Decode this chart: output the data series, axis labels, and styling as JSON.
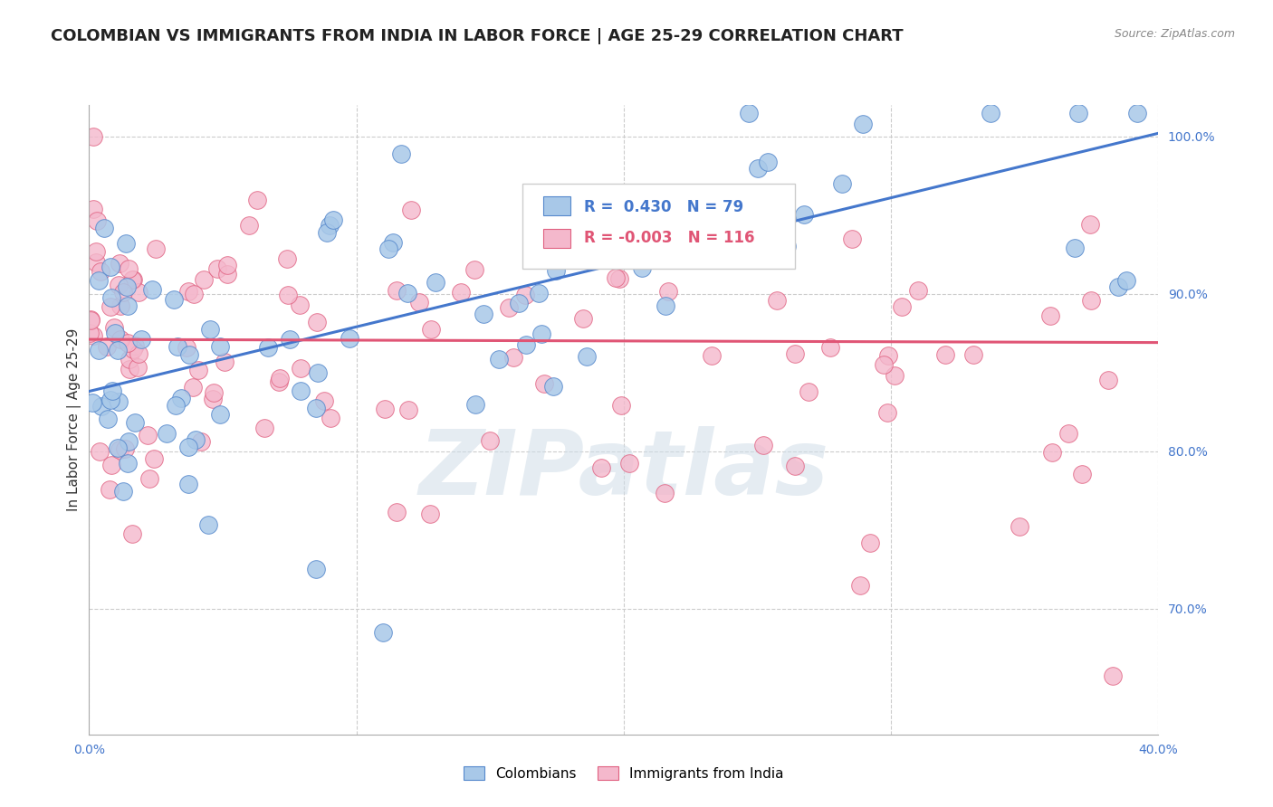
{
  "title": "COLOMBIAN VS IMMIGRANTS FROM INDIA IN LABOR FORCE | AGE 25-29 CORRELATION CHART",
  "source": "Source: ZipAtlas.com",
  "ylabel": "In Labor Force | Age 25-29",
  "xlim": [
    0.0,
    0.4
  ],
  "ylim": [
    0.62,
    1.02
  ],
  "xtick_pos": [
    0.0,
    0.1,
    0.2,
    0.3,
    0.4
  ],
  "xtick_labels": [
    "0.0%",
    "",
    "",
    "",
    "40.0%"
  ],
  "ytick_pos": [
    0.7,
    0.8,
    0.9,
    1.0
  ],
  "ytick_labels": [
    "70.0%",
    "80.0%",
    "90.0%",
    "100.0%"
  ],
  "legend_R_blue": "0.430",
  "legend_N_blue": "79",
  "legend_R_pink": "-0.003",
  "legend_N_pink": "116",
  "color_blue": "#a8c8e8",
  "color_pink": "#f4b8cc",
  "edge_blue": "#5588cc",
  "edge_pink": "#e06080",
  "line_blue_color": "#4477cc",
  "line_pink_color": "#e05575",
  "blue_line_x": [
    0.0,
    0.4
  ],
  "blue_line_y": [
    0.838,
    1.002
  ],
  "pink_line_x": [
    0.0,
    0.4
  ],
  "pink_line_y": [
    0.871,
    0.869
  ],
  "watermark": "ZIPatlas",
  "grid_color": "#cccccc",
  "background_color": "#ffffff",
  "title_fontsize": 13,
  "source_fontsize": 9,
  "axis_label_fontsize": 11,
  "tick_fontsize": 10,
  "right_tick_color": "#4477cc"
}
